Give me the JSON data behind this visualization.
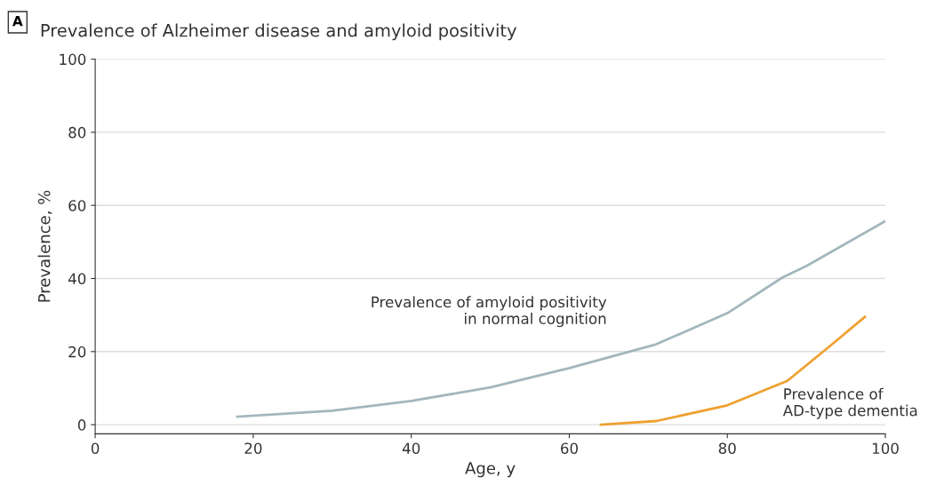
{
  "chart_data": {
    "type": "line",
    "title": "Prevalence of Alzheimer disease and amyloid positivity",
    "xlabel": "Age, y",
    "ylabel": "Prevalence, %",
    "xlim": [
      0,
      100
    ],
    "xticks": [
      0,
      20,
      40,
      60,
      80,
      100
    ],
    "ylim": [
      -2.5,
      100
    ],
    "yticks": [
      0,
      20,
      40,
      60,
      80,
      100
    ],
    "grid": "y",
    "legend": false,
    "series": [
      {
        "name": "Prevalence of amyloid positivity\nin normal cognition",
        "color": "#a3b6bd",
        "x": [
          18,
          30,
          40,
          50,
          60,
          71,
          80,
          87,
          90,
          100
        ],
        "values": [
          2.2,
          3.8,
          6.5,
          10.2,
          15.5,
          22,
          30.5,
          40.3,
          43.4,
          55.7
        ]
      },
      {
        "name": "Prevalence of\nAD-type dementia",
        "color": "#f0a030",
        "x": [
          64,
          71,
          80,
          87.6,
          93.2,
          97.4
        ],
        "values": [
          0,
          1,
          5.3,
          12,
          21.9,
          29.5
        ]
      }
    ],
    "annotations": [
      "A"
    ]
  }
}
